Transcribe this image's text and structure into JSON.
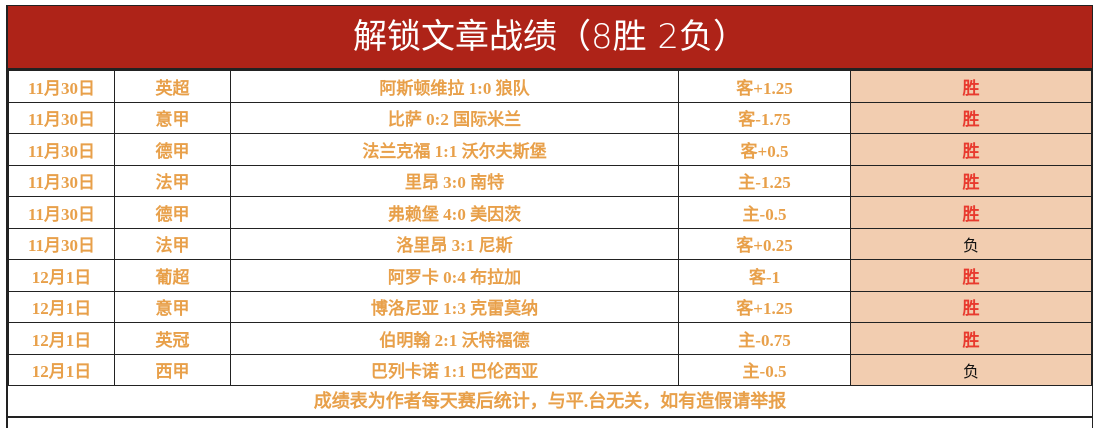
{
  "title": "解锁文章战绩（8胜 2负）",
  "rows": [
    {
      "date": "11月30日",
      "league": "英超",
      "match": "阿斯顿维拉 1:0 狼队",
      "handicap": "客+1.25",
      "result": "胜"
    },
    {
      "date": "11月30日",
      "league": "意甲",
      "match": "比萨 0:2 国际米兰",
      "handicap": "客-1.75",
      "result": "胜"
    },
    {
      "date": "11月30日",
      "league": "德甲",
      "match": "法兰克福 1:1 沃尔夫斯堡",
      "handicap": "客+0.5",
      "result": "胜"
    },
    {
      "date": "11月30日",
      "league": "法甲",
      "match": "里昂 3:0 南特",
      "handicap": "主-1.25",
      "result": "胜"
    },
    {
      "date": "11月30日",
      "league": "德甲",
      "match": "弗赖堡 4:0 美因茨",
      "handicap": "主-0.5",
      "result": "胜"
    },
    {
      "date": "11月30日",
      "league": "法甲",
      "match": "洛里昂 3:1 尼斯",
      "handicap": "客+0.25",
      "result": "负"
    },
    {
      "date": "12月1日",
      "league": "葡超",
      "match": "阿罗卡 0:4 布拉加",
      "handicap": "客-1",
      "result": "胜"
    },
    {
      "date": "12月1日",
      "league": "意甲",
      "match": "博洛尼亚 1:3 克雷莫纳",
      "handicap": "客+1.25",
      "result": "胜"
    },
    {
      "date": "12月1日",
      "league": "英冠",
      "match": "伯明翰 2:1 沃特福德",
      "handicap": "主-0.75",
      "result": "胜"
    },
    {
      "date": "12月1日",
      "league": "西甲",
      "match": "巴列卡诺 1:1 巴伦西亚",
      "handicap": "主-0.5",
      "result": "负"
    }
  ],
  "footer": "成绩表为作者每天赛后统计，与平.台无关，如有造假请举报",
  "colors": {
    "title_bg": "#ae2318",
    "text": "#e8a04a",
    "win": "#e83a2e",
    "result_bg": "#f2cdb0"
  }
}
